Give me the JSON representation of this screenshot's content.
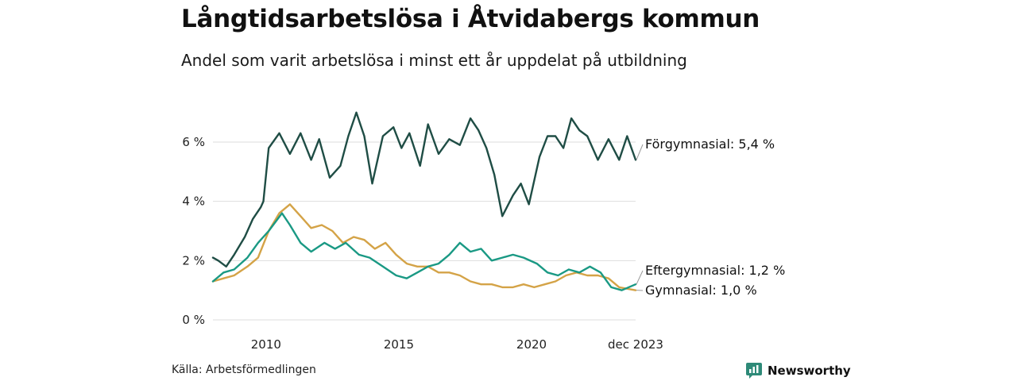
{
  "title": "Långtidsarbetslösa i Åtvidabergs kommun",
  "subtitle": "Andel som varit arbetslösa i minst ett år uppdelat på utbildning",
  "source": "Källa: Arbetsförmedlingen",
  "brand": {
    "name": "Newsworthy",
    "icon": "newsworthy-logo-icon"
  },
  "colors": {
    "forgymnasial": "#1f4d45",
    "eftergymnasial": "#1a9984",
    "gymnasial": "#d4a347",
    "grid": "#dddddd"
  },
  "chart_data": {
    "type": "line",
    "title": "Långtidsarbetslösa i Åtvidabergs kommun",
    "ylabel": "",
    "xlabel": "",
    "ylim": [
      0,
      7.5
    ],
    "xlim": [
      2008.0,
      2023.92
    ],
    "y_ticks": [
      {
        "value": 0,
        "label": "0 %"
      },
      {
        "value": 2,
        "label": "2 %"
      },
      {
        "value": 4,
        "label": "4 %"
      },
      {
        "value": 6,
        "label": "6 %"
      }
    ],
    "x_ticks": [
      {
        "value": 2010,
        "label": "2010"
      },
      {
        "value": 2015,
        "label": "2015"
      },
      {
        "value": 2020,
        "label": "2020"
      },
      {
        "value": 2023.92,
        "label": "dec 2023"
      }
    ],
    "series": [
      {
        "name": "Förgymnasial",
        "label": "Förgymnasial: 5,4 %",
        "color": "#1f4d45",
        "x": [
          2008.0,
          2008.2,
          2008.5,
          2008.8,
          2009.2,
          2009.5,
          2009.8,
          2009.9,
          2010.1,
          2010.5,
          2010.9,
          2011.3,
          2011.7,
          2012.0,
          2012.4,
          2012.8,
          2013.1,
          2013.4,
          2013.7,
          2014.0,
          2014.4,
          2014.8,
          2015.1,
          2015.4,
          2015.8,
          2016.1,
          2016.5,
          2016.9,
          2017.3,
          2017.7,
          2018.0,
          2018.3,
          2018.6,
          2018.9,
          2019.3,
          2019.6,
          2019.9,
          2020.3,
          2020.6,
          2020.9,
          2021.2,
          2021.5,
          2021.8,
          2022.1,
          2022.5,
          2022.9,
          2023.3,
          2023.6,
          2023.92
        ],
        "y": [
          2.1,
          2.0,
          1.8,
          2.2,
          2.8,
          3.4,
          3.8,
          4.0,
          5.8,
          6.3,
          5.6,
          6.3,
          5.4,
          6.1,
          4.8,
          5.2,
          6.2,
          7.0,
          6.2,
          4.6,
          6.2,
          6.5,
          5.8,
          6.3,
          5.2,
          6.6,
          5.6,
          6.1,
          5.9,
          6.8,
          6.4,
          5.8,
          4.9,
          3.5,
          4.2,
          4.6,
          3.9,
          5.5,
          6.2,
          6.2,
          5.8,
          6.8,
          6.4,
          6.2,
          5.4,
          6.1,
          5.4,
          6.2,
          5.4
        ]
      },
      {
        "name": "Eftergymnasial",
        "label": "Eftergymnasial: 1,2 %",
        "color": "#1a9984",
        "x": [
          2008.0,
          2008.4,
          2008.8,
          2009.3,
          2009.7,
          2010.1,
          2010.6,
          2010.9,
          2011.3,
          2011.7,
          2012.2,
          2012.6,
          2013.0,
          2013.5,
          2013.9,
          2014.4,
          2014.9,
          2015.3,
          2015.7,
          2016.1,
          2016.5,
          2016.9,
          2017.3,
          2017.7,
          2018.1,
          2018.5,
          2018.9,
          2019.3,
          2019.7,
          2020.2,
          2020.6,
          2021.0,
          2021.4,
          2021.8,
          2022.2,
          2022.6,
          2023.0,
          2023.4,
          2023.92
        ],
        "y": [
          1.3,
          1.6,
          1.7,
          2.1,
          2.6,
          3.0,
          3.6,
          3.2,
          2.6,
          2.3,
          2.6,
          2.4,
          2.6,
          2.2,
          2.1,
          1.8,
          1.5,
          1.4,
          1.6,
          1.8,
          1.9,
          2.2,
          2.6,
          2.3,
          2.4,
          2.0,
          2.1,
          2.2,
          2.1,
          1.9,
          1.6,
          1.5,
          1.7,
          1.6,
          1.8,
          1.6,
          1.1,
          1.0,
          1.2
        ]
      },
      {
        "name": "Gymnasial",
        "label": "Gymnasial: 1,0 %",
        "color": "#d4a347",
        "x": [
          2008.0,
          2008.4,
          2008.8,
          2009.3,
          2009.7,
          2010.1,
          2010.5,
          2010.9,
          2011.3,
          2011.7,
          2012.1,
          2012.5,
          2012.9,
          2013.3,
          2013.7,
          2014.1,
          2014.5,
          2014.9,
          2015.3,
          2015.7,
          2016.1,
          2016.5,
          2016.9,
          2017.3,
          2017.7,
          2018.1,
          2018.5,
          2018.9,
          2019.3,
          2019.7,
          2020.1,
          2020.5,
          2020.9,
          2021.3,
          2021.7,
          2022.1,
          2022.5,
          2022.9,
          2023.3,
          2023.92
        ],
        "y": [
          1.3,
          1.4,
          1.5,
          1.8,
          2.1,
          3.0,
          3.6,
          3.9,
          3.5,
          3.1,
          3.2,
          3.0,
          2.6,
          2.8,
          2.7,
          2.4,
          2.6,
          2.2,
          1.9,
          1.8,
          1.8,
          1.6,
          1.6,
          1.5,
          1.3,
          1.2,
          1.2,
          1.1,
          1.1,
          1.2,
          1.1,
          1.2,
          1.3,
          1.5,
          1.6,
          1.5,
          1.5,
          1.4,
          1.1,
          1.0
        ]
      }
    ]
  }
}
